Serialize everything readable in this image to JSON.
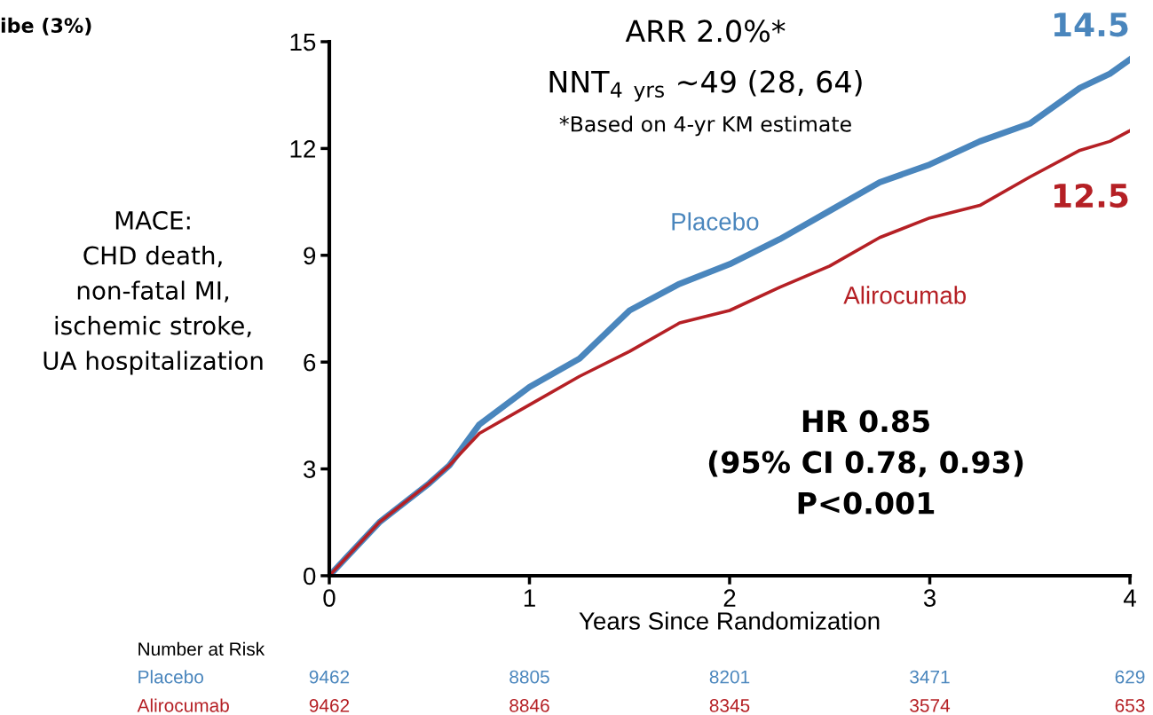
{
  "chart_data": {
    "type": "line",
    "title": "ibe (3%)",
    "xlabel": "Years Since Randomization",
    "ylabel": "MACE:\nCHD death,\nnon-fatal MI,\nischemic stroke,\nUA hospitalization",
    "xlim": [
      0,
      4
    ],
    "xticks": [
      0,
      1,
      2,
      3,
      4
    ],
    "ylim": [
      0,
      15
    ],
    "yticks": [
      0,
      3,
      6,
      9,
      12,
      15
    ],
    "grid": false,
    "legend": false,
    "marker": "none",
    "line_style": "solid",
    "series": [
      {
        "name": "Placebo",
        "color": "#4a86bd",
        "x": [
          0,
          0.1,
          0.25,
          0.5,
          0.6,
          0.75,
          1,
          1.25,
          1.5,
          1.75,
          2,
          2.25,
          2.5,
          2.75,
          3,
          3.25,
          3.5,
          3.75,
          3.9,
          4
        ],
        "values": [
          0,
          0.6,
          1.5,
          2.6,
          3.1,
          4.25,
          5.3,
          6.1,
          7.45,
          8.2,
          8.75,
          9.45,
          10.25,
          11.05,
          11.55,
          12.2,
          12.7,
          13.7,
          14.1,
          14.5
        ]
      },
      {
        "name": "Alirocumab",
        "color": "#b52025",
        "x": [
          0,
          0.1,
          0.25,
          0.5,
          0.6,
          0.75,
          1,
          1.25,
          1.5,
          1.75,
          2,
          2.25,
          2.5,
          2.75,
          3,
          3.25,
          3.5,
          3.75,
          3.9,
          4
        ],
        "values": [
          0,
          0.6,
          1.5,
          2.6,
          3.1,
          4.0,
          4.8,
          5.6,
          6.3,
          7.1,
          7.45,
          8.1,
          8.7,
          9.5,
          10.05,
          10.4,
          11.2,
          11.95,
          12.2,
          12.5
        ]
      }
    ],
    "annotations": [
      "ARR 2.0%*",
      "NNT$_{4 yrs}$ ~49 (28, 64)",
      "*Based on 4-yr KM estimate",
      {
        "text": "14.5",
        "x": 4,
        "y": 14.5
      },
      {
        "text": "12.5",
        "x": 4,
        "y": 12.5
      },
      "HR 0.85\n(95% CI 0.78, 0.93)\nP<0.001",
      "Number at Risk",
      "Placebo",
      "Alirocumab",
      "9462",
      "8805",
      "8201",
      "3471",
      "629",
      "9462",
      "8846",
      "8345",
      "3574",
      "653"
    ]
  }
}
